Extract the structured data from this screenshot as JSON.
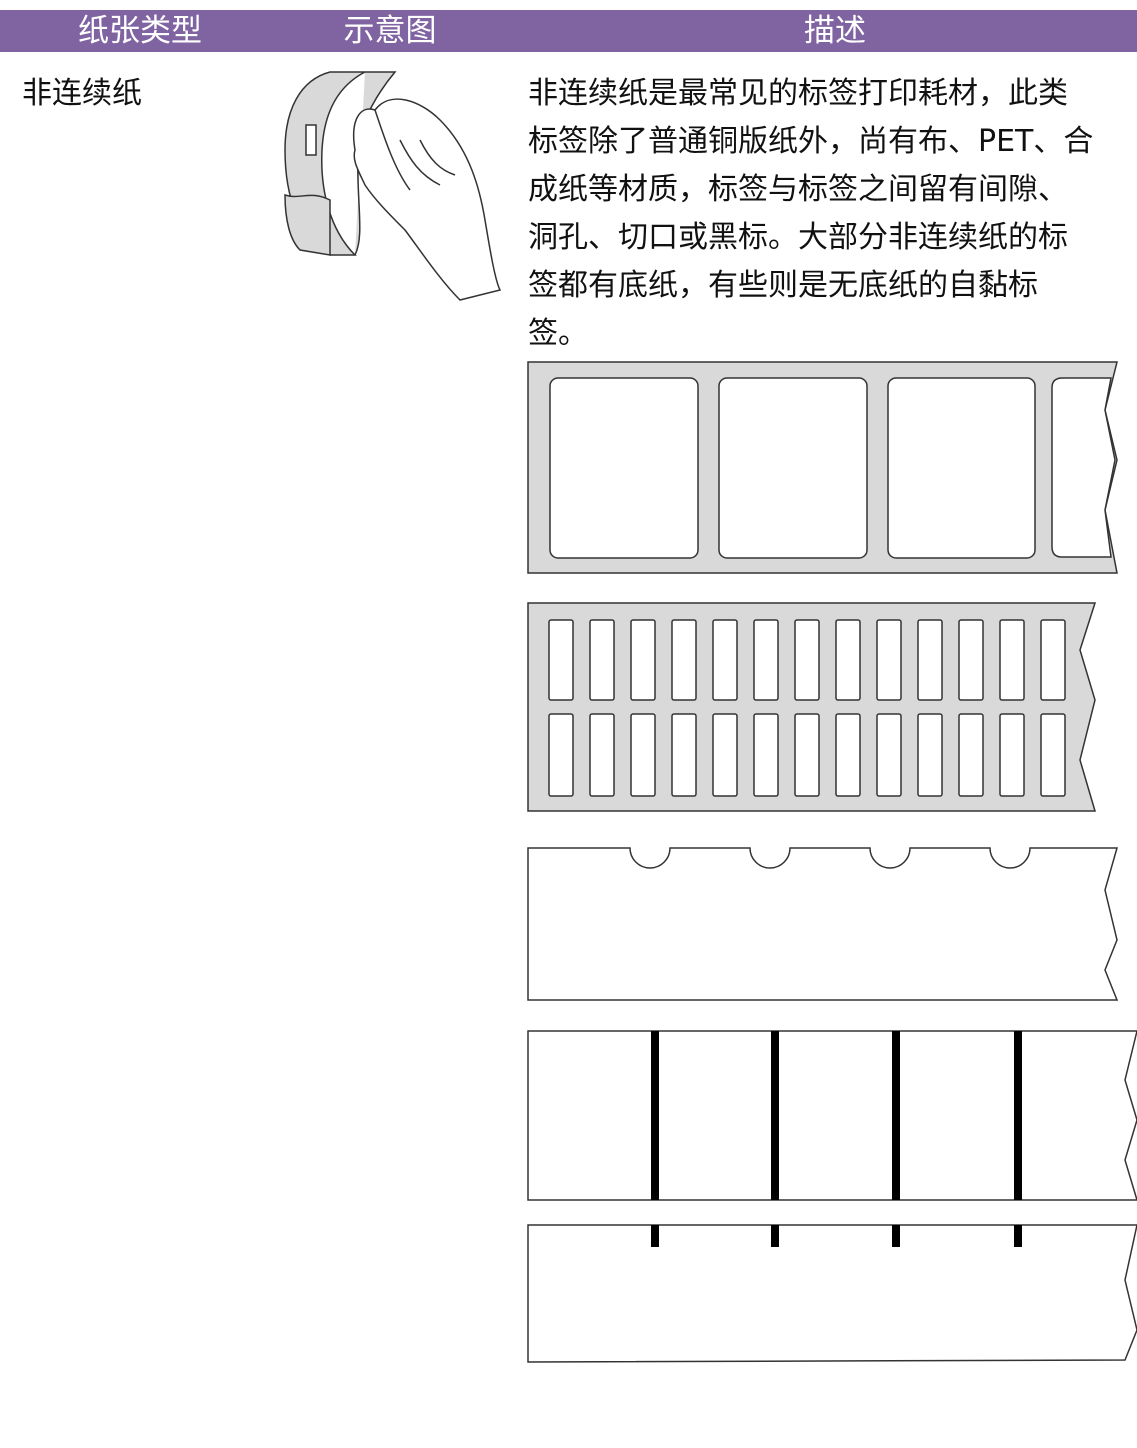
{
  "table": {
    "header": [
      "纸张类型",
      "示意图",
      "描述"
    ],
    "rows": [
      {
        "type": "非连续纸",
        "description": [
          "非连续纸是最常见的标签打印耗材，此类",
          "标签除了普通铜版纸外，尚有布、PET、合",
          "成纸等材质，标签与标签之间留有间隙、",
          "洞孔、切口或黑标。大部分非连续纸的标",
          "签都有底纸，有些则是无底纸的自黏标",
          "签。"
        ]
      }
    ]
  }
}
